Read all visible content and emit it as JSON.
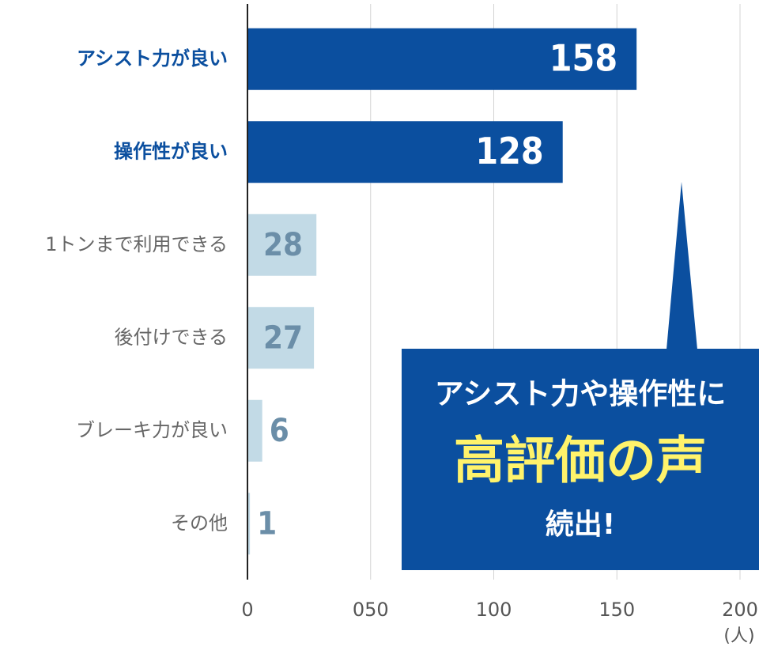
{
  "chart_data": {
    "type": "hbar",
    "categories": [
      "アシスト力が良い",
      "操作性が良い",
      "1トンまで利用できる",
      "後付けできる",
      "ブレーキ力が良い",
      "その他"
    ],
    "values": [
      158,
      128,
      28,
      27,
      6,
      1
    ],
    "colors": [
      "#0b4f9f",
      "#0b4f9f",
      "#c2dae6",
      "#c2dae6",
      "#c2dae6",
      "#c2dae6"
    ],
    "value_label_colors": [
      "#ffffff",
      "#ffffff",
      "#6b8ea8",
      "#6b8ea8",
      "#6b8ea8",
      "#6b8ea8"
    ],
    "category_label_colors": [
      "#0b4f9f",
      "#0b4f9f",
      "#666666",
      "#666666",
      "#666666",
      "#666666"
    ],
    "xlim": [
      0,
      200
    ],
    "xticks": [
      0,
      {
        "value": 50,
        "label": "050"
      },
      100,
      150,
      200
    ],
    "x_unit": "(人)",
    "grid": true,
    "callout": {
      "line1": "アシスト力や操作性に",
      "line2": "高評価の声",
      "line3": "続出!",
      "color": "#0b4f9f",
      "highlight_color": "#fff36b"
    }
  }
}
